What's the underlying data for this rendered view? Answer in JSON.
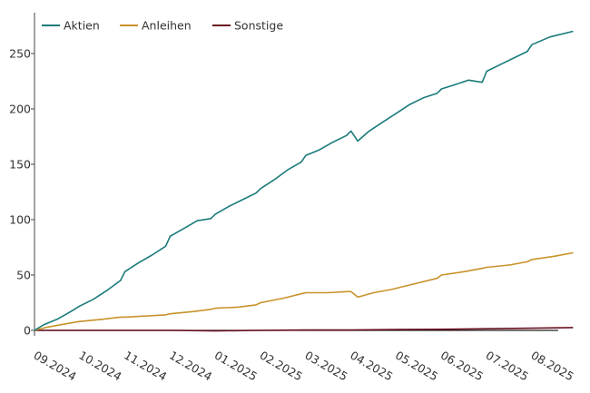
{
  "chart_data": {
    "type": "line",
    "title": "",
    "xlabel": "",
    "ylabel": "",
    "ylim": [
      0,
      275
    ],
    "yticks": [
      0,
      50,
      100,
      150,
      200,
      250
    ],
    "xticks": [
      "09.2024",
      "10.2024",
      "11.2024",
      "12.2024",
      "01.2025",
      "02.2025",
      "03.2025",
      "04.2025",
      "05.2025",
      "06.2025",
      "07.2025",
      "08.2025"
    ],
    "grid": false,
    "legend_position": "top-left",
    "series": [
      {
        "name": "Aktien",
        "color": "#1a7a7a",
        "points": [
          [
            "09.2024",
            0
          ],
          [
            "09.2024+0.2",
            5
          ],
          [
            "09.2024+0.5",
            10
          ],
          [
            "09.2024+0.8",
            17
          ],
          [
            "10.2024",
            22
          ],
          [
            "10.2024+0.3",
            28
          ],
          [
            "10.2024+0.6",
            36
          ],
          [
            "10.2024+0.9",
            45
          ],
          [
            "11.2024",
            53
          ],
          [
            "11.2024+0.3",
            61
          ],
          [
            "11.2024+0.6",
            68
          ],
          [
            "11.2024+0.9",
            76
          ],
          [
            "12.2024",
            85
          ],
          [
            "12.2024+0.3",
            92
          ],
          [
            "12.2024+0.6",
            99
          ],
          [
            "12.2024+0.9",
            101
          ],
          [
            "01.2025",
            105
          ],
          [
            "01.2025+0.3",
            112
          ],
          [
            "01.2025+0.6",
            118
          ],
          [
            "01.2025+0.9",
            124
          ],
          [
            "02.2025",
            128
          ],
          [
            "02.2025+0.3",
            136
          ],
          [
            "02.2025+0.6",
            145
          ],
          [
            "02.2025+0.9",
            152
          ],
          [
            "03.2025",
            158
          ],
          [
            "03.2025+0.3",
            163
          ],
          [
            "03.2025+0.6",
            170
          ],
          [
            "03.2025+0.9",
            176
          ],
          [
            "04.2025",
            180
          ],
          [
            "04.2025+0.15",
            171
          ],
          [
            "04.2025+0.4",
            180
          ],
          [
            "04.2025+0.7",
            188
          ],
          [
            "05.2025",
            196
          ],
          [
            "05.2025+0.3",
            204
          ],
          [
            "05.2025+0.6",
            210
          ],
          [
            "05.2025+0.9",
            214
          ],
          [
            "06.2025",
            218
          ],
          [
            "06.2025+0.3",
            222
          ],
          [
            "06.2025+0.6",
            226
          ],
          [
            "06.2025+0.9",
            224
          ],
          [
            "07.2025",
            234
          ],
          [
            "07.2025+0.3",
            240
          ],
          [
            "07.2025+0.6",
            246
          ],
          [
            "07.2025+0.9",
            252
          ],
          [
            "08.2025",
            258
          ],
          [
            "08.2025+0.4",
            265
          ],
          [
            "08.2025+0.9",
            270
          ]
        ]
      },
      {
        "name": "Anleihen",
        "color": "#c8922a",
        "points": [
          [
            "09.2024",
            0
          ],
          [
            "09.2024+0.3",
            3
          ],
          [
            "09.2024+0.7",
            6
          ],
          [
            "10.2024",
            8
          ],
          [
            "10.2024+0.5",
            10
          ],
          [
            "10.2024+0.9",
            12
          ],
          [
            "11.2024",
            12
          ],
          [
            "11.2024+0.5",
            13
          ],
          [
            "11.2024+0.9",
            14
          ],
          [
            "12.2024",
            15
          ],
          [
            "12.2024+0.5",
            17
          ],
          [
            "12.2024+0.9",
            19
          ],
          [
            "01.2025",
            20
          ],
          [
            "01.2025+0.5",
            21
          ],
          [
            "01.2025+0.9",
            23
          ],
          [
            "02.2025",
            25
          ],
          [
            "02.2025+0.5",
            29
          ],
          [
            "02.2025+0.9",
            33
          ],
          [
            "03.2025",
            34
          ],
          [
            "03.2025+0.5",
            34
          ],
          [
            "03.2025+0.9",
            35
          ],
          [
            "04.2025",
            35
          ],
          [
            "04.2025+0.15",
            30
          ],
          [
            "04.2025+0.5",
            34
          ],
          [
            "04.2025+0.9",
            37
          ],
          [
            "05.2025",
            38
          ],
          [
            "05.2025+0.5",
            43
          ],
          [
            "05.2025+0.9",
            47
          ],
          [
            "06.2025",
            50
          ],
          [
            "06.2025+0.5",
            53
          ],
          [
            "06.2025+0.9",
            56
          ],
          [
            "07.2025",
            57
          ],
          [
            "07.2025+0.5",
            59
          ],
          [
            "07.2025+0.9",
            62
          ],
          [
            "08.2025",
            64
          ],
          [
            "08.2025+0.5",
            67
          ],
          [
            "08.2025+0.9",
            70
          ]
        ]
      },
      {
        "name": "Sonstige",
        "color": "#6b1122",
        "points": [
          [
            "09.2024",
            0
          ],
          [
            "10.2024",
            0
          ],
          [
            "11.2024",
            0
          ],
          [
            "12.2024",
            0
          ],
          [
            "01.2025",
            -0.5
          ],
          [
            "02.2025",
            0
          ],
          [
            "03.2025",
            0.3
          ],
          [
            "04.2025",
            0.3
          ],
          [
            "05.2025",
            0.8
          ],
          [
            "06.2025",
            1
          ],
          [
            "07.2025",
            1.5
          ],
          [
            "08.2025",
            2
          ],
          [
            "08.2025+0.9",
            2.5
          ]
        ]
      }
    ]
  }
}
